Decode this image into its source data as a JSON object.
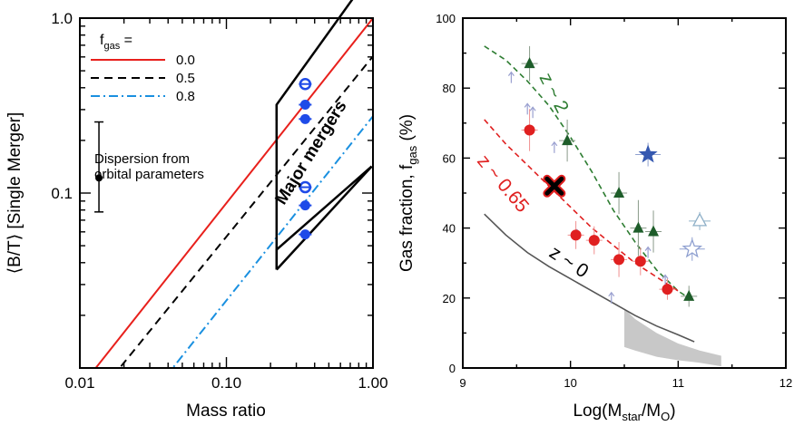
{
  "chart_data": [
    {
      "type": "line",
      "title": "",
      "xlabel": "Mass ratio",
      "ylabel": "⟨B/T⟩ [Single Merger]",
      "xscale": "log",
      "yscale": "log",
      "xlim": [
        0.01,
        1.0
      ],
      "ylim": [
        0.01,
        1.0
      ],
      "x_ticks": [
        0.01,
        0.1,
        1.0
      ],
      "x_tick_labels": [
        "0.01",
        "0.10",
        "1.00"
      ],
      "y_ticks": [
        0.1,
        1.0
      ],
      "y_tick_labels": [
        "0.1",
        "1.0"
      ],
      "legend": {
        "title": "f",
        "title_sub": "gas",
        "title_suffix": " =",
        "location": "top-left",
        "entries": [
          {
            "label": "0.0",
            "color": "#e8201c",
            "style": "solid"
          },
          {
            "label": "0.5",
            "color": "#000000",
            "style": "dashed"
          },
          {
            "label": "0.8",
            "color": "#1a90e0",
            "style": "dashdot"
          }
        ]
      },
      "series": [
        {
          "name": "0.0",
          "x": [
            0.0115,
            1.0
          ],
          "y": [
            0.0089,
            1.0
          ]
        },
        {
          "name": "0.5",
          "x": [
            0.0167,
            1.0
          ],
          "y": [
            0.0089,
            0.605
          ]
        },
        {
          "name": "0.8",
          "x": [
            0.0385,
            1.0
          ],
          "y": [
            0.0089,
            0.275
          ]
        }
      ],
      "points": {
        "color": "#1f4be8",
        "x": [
          0.345,
          0.345,
          0.345,
          0.345,
          0.345,
          0.345
        ],
        "y": [
          0.42,
          0.32,
          0.265,
          0.108,
          0.085,
          0.058
        ],
        "open": [
          true,
          false,
          false,
          true,
          false,
          false
        ]
      },
      "major_mergers_region": {
        "label": "Major mergers",
        "x": [
          0.22,
          1.0
        ]
      },
      "dispersion_bar": {
        "label_line1": "Dispersion from",
        "label_line2": "orbital parameters",
        "x": 0.0135,
        "y": 0.122,
        "ylow": 0.078,
        "yhigh": 0.255
      }
    },
    {
      "type": "scatter",
      "title": "",
      "xlabel": "Log(M",
      "xlabel_sub1": "star",
      "xlabel_mid": "/M",
      "xlabel_sub2": "O",
      "xlabel_end": ")",
      "ylabel": "Gas fraction, f",
      "ylabel_sub": "gas",
      "ylabel_end": " (%)",
      "xlim": [
        9,
        12
      ],
      "ylim": [
        0,
        100
      ],
      "x_ticks": [
        9,
        10,
        11,
        12
      ],
      "x_tick_labels": [
        "9",
        "10",
        "11",
        "12"
      ],
      "y_ticks": [
        0,
        20,
        40,
        60,
        80,
        100
      ],
      "y_tick_labels": [
        "0",
        "20",
        "40",
        "60",
        "80",
        "100"
      ],
      "curve_labels": [
        "z ~ 2",
        "z ~ 0.65",
        "z ~ 0"
      ],
      "curves": [
        {
          "name": "z ~ 2",
          "color": "#2e7d32",
          "style": "dashed",
          "x": [
            9.2,
            9.4,
            9.6,
            9.8,
            10.0,
            10.2,
            10.4,
            10.6,
            10.8,
            11.0,
            11.1
          ],
          "y": [
            92,
            88,
            82,
            75,
            66,
            56,
            45,
            36,
            28,
            22,
            20
          ]
        },
        {
          "name": "z ~ 0.65",
          "color": "#e02020",
          "style": "dashed",
          "x": [
            9.2,
            9.4,
            9.6,
            9.8,
            10.0,
            10.2,
            10.4,
            10.6,
            10.8,
            11.0
          ],
          "y": [
            71,
            64,
            58,
            52,
            46,
            40,
            35,
            30,
            26,
            22
          ]
        },
        {
          "name": "z ~ 0",
          "color": "#555555",
          "style": "solid",
          "x": [
            9.2,
            9.4,
            9.6,
            9.8,
            10.0,
            10.2,
            10.4,
            10.6,
            10.8,
            11.0,
            11.15
          ],
          "y": [
            44,
            38,
            33,
            29,
            25.5,
            22,
            18.5,
            15,
            12,
            9.5,
            7.5
          ]
        }
      ],
      "band": {
        "color": "#c8c8c8",
        "x_upper": [
          10.5,
          10.6,
          10.8,
          11.0,
          11.2,
          11.4
        ],
        "y_upper": [
          17,
          14,
          10,
          7,
          5,
          3.5
        ],
        "x_lower": [
          11.4,
          11.2,
          11.0,
          10.8,
          10.6,
          10.5
        ],
        "y_lower": [
          0.5,
          1.5,
          2.2,
          3.2,
          5,
          6
        ]
      },
      "red_circles": {
        "color": "#e02020",
        "x": [
          9.62,
          10.05,
          10.22,
          10.45,
          10.65,
          10.9
        ],
        "y": [
          68,
          38,
          36.5,
          31,
          30.5,
          22.5
        ],
        "yerr": [
          6,
          4,
          4,
          5,
          4,
          3
        ]
      },
      "green_triangles": {
        "color": "#1e5d2a",
        "x": [
          9.62,
          9.97,
          10.45,
          10.63,
          10.77,
          11.1
        ],
        "y": [
          87,
          65,
          50,
          40,
          39,
          20.5
        ],
        "yerr": [
          5,
          6,
          6,
          8,
          6,
          3
        ]
      },
      "blue_stars": {
        "color": "#3558b0",
        "x": [
          10.72,
          11.13
        ],
        "y": [
          61,
          34
        ],
        "open": [
          false,
          true
        ]
      },
      "open_triangle": {
        "color": "#8fb0c8",
        "x": 11.2,
        "y": 42
      },
      "black_cross": {
        "x": 9.85,
        "y": 52
      },
      "arrows": {
        "color": "#9aa0d0",
        "x": [
          9.45,
          9.6,
          9.65,
          9.85,
          10.06,
          10.38,
          10.72,
          10.88
        ],
        "y": [
          83,
          74,
          73,
          63,
          38,
          20,
          33,
          25
        ]
      }
    }
  ]
}
